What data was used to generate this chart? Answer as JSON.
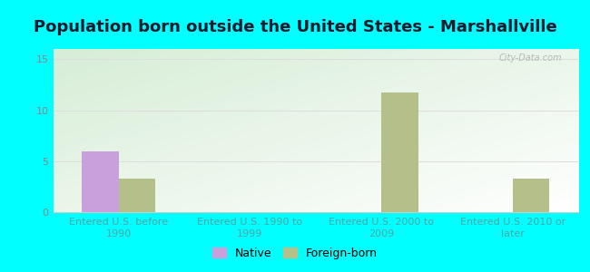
{
  "title": "Population born outside the United States - Marshallville",
  "categories": [
    "Entered U.S. before\n1990",
    "Entered U.S. 1990 to\n1999",
    "Entered U.S. 2000 to\n2009",
    "Entered U.S. 2010 or\nlater"
  ],
  "native_values": [
    6,
    0,
    0,
    0
  ],
  "foreign_values": [
    3.3,
    0,
    11.7,
    3.3
  ],
  "native_color": "#c9a0dc",
  "foreign_color": "#b5bf8a",
  "ylim": [
    0,
    16
  ],
  "yticks": [
    0,
    5,
    10,
    15
  ],
  "background_outer": "#00ffff",
  "background_inner_topleft": "#d6edd6",
  "background_inner_bottomright": "#f5fff8",
  "watermark": "City-Data.com",
  "bar_width": 0.28,
  "title_fontsize": 13,
  "tick_label_fontsize": 8,
  "xtick_color": "#4da6a6",
  "ytick_color": "#888888",
  "legend_fontsize": 9,
  "grid_color": "#dddddd"
}
